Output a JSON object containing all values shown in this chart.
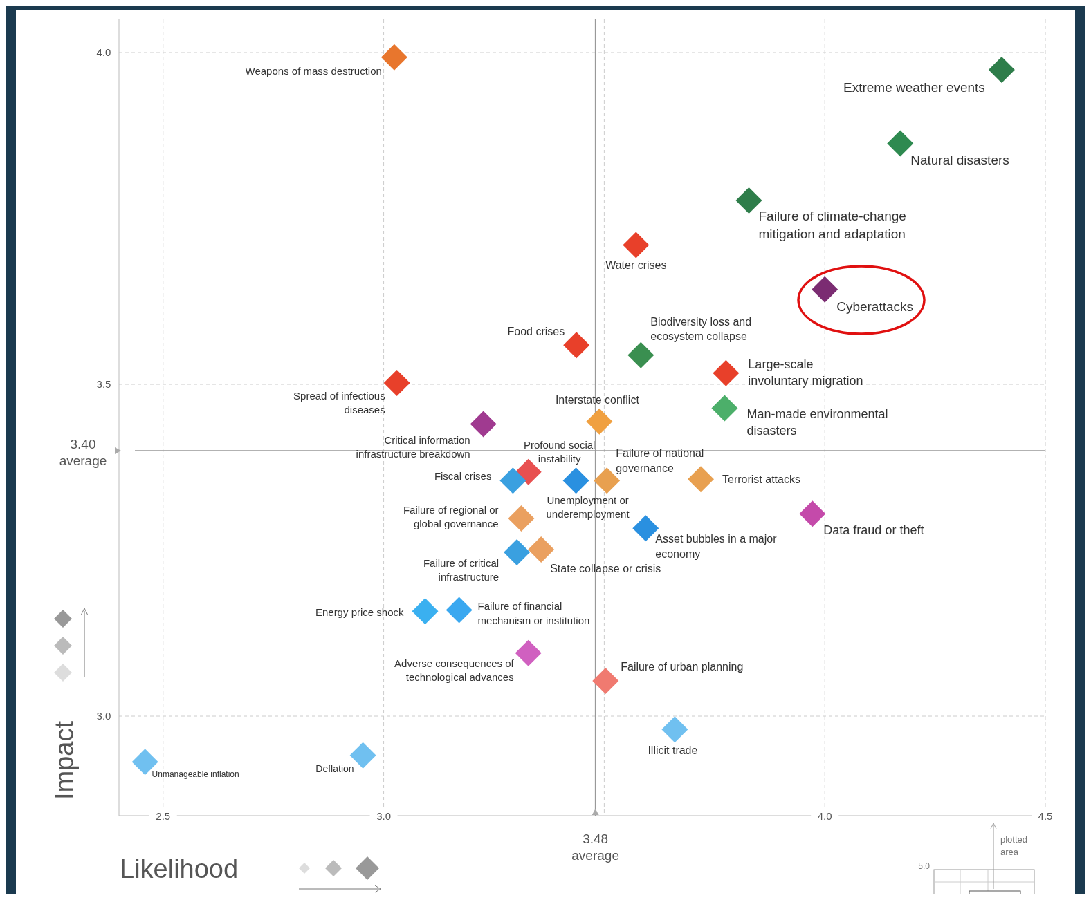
{
  "chart_data": {
    "type": "scatter",
    "xlabel": "Likelihood",
    "ylabel": "Impact",
    "xlim": [
      2.4,
      4.5
    ],
    "ylim": [
      2.85,
      4.05
    ],
    "xticks": [
      2.5,
      {
        "value": 3,
        "label": "3.0"
      },
      {
        "value": 3.5,
        "label": null
      },
      {
        "value": 4,
        "label": "4.0"
      },
      4.5
    ],
    "yticks": [
      {
        "value": 3,
        "label": "3.0"
      },
      3.5,
      {
        "value": 4,
        "label": "4.0"
      }
    ],
    "grid": true,
    "marker": "diamond",
    "ref_lines": [
      {
        "axis": "y",
        "value": 3.4,
        "label": "3.40\naverage",
        "color": "#999999"
      },
      {
        "axis": "x",
        "value": 3.48,
        "label": "3.48\naverage",
        "color": "#999999"
      }
    ],
    "annotations": [
      "plotted area",
      "5.0"
    ],
    "series": [
      {
        "x": [
          3.024,
          4.401,
          4.171,
          3.828,
          3.572,
          4.0,
          3.437,
          3.583,
          3.776,
          3.03,
          3.773,
          3.489,
          3.226,
          3.328,
          3.293,
          3.436,
          3.506,
          3.719,
          3.972,
          3.312,
          3.594,
          3.302,
          3.357,
          3.094,
          3.171,
          3.328,
          3.503,
          3.66,
          2.459,
          2.953
        ],
        "values": [
          3.993,
          3.974,
          3.863,
          3.777,
          3.71,
          3.643,
          3.559,
          3.544,
          3.517,
          3.502,
          3.464,
          3.444,
          3.44,
          3.368,
          3.355,
          3.355,
          3.355,
          3.357,
          3.305,
          3.298,
          3.283,
          3.247,
          3.251,
          3.158,
          3.16,
          3.095,
          3.053,
          2.98,
          2.931,
          2.941
        ],
        "colors": [
          "#e8762d",
          "#2e7d4a",
          "#2e8a50",
          "#2e7d4a",
          "#e8402a",
          "#7b2c72",
          "#e8402a",
          "#3a8f50",
          "#e8402a",
          "#e8402a",
          "#4caf6a",
          "#f0a040",
          "#a03a90",
          "#e85050",
          "#3aa0e0",
          "#2a90e0",
          "#e8a050",
          "#e8a050",
          "#c44aaa",
          "#eaa060",
          "#2a90e0",
          "#3aa0e0",
          "#eaa060",
          "#3ab0f0",
          "#3aa8f0",
          "#d060c0",
          "#f07a70",
          "#70c0f0",
          "#70c0f0",
          "#70c0f0"
        ],
        "value_labels": [
          "Weapons of mass destruction",
          "Extreme weather events",
          "Natural disasters",
          "Failure of climate-change\nmitigation and adaptation",
          "Water crises",
          "Cyberattacks",
          "Food crises",
          "Biodiversity loss and\necosystem collapse",
          "Large-scale\ninvoluntary migration",
          "Spread of infectious\ndiseases",
          "Man-made environmental\ndisasters",
          "Interstate conflict",
          "Critical information\ninfrastructure breakdown",
          "Profound social\ninstability",
          "Fiscal crises",
          "Unemployment or\nunderemployment",
          "Failure of national\ngovernance",
          "Terrorist attacks",
          "Data fraud or theft",
          "Failure of regional or\nglobal governance",
          "Asset bubbles in a major\neconomy",
          "Failure of critical\ninfrastructure",
          "State collapse or crisis",
          "Energy price shock",
          "Failure of financial\nmechanism or institution",
          "Adverse consequences of\ntechnological advances",
          "Failure of urban planning",
          "Illicit trade",
          "Unmanageable inflation",
          "Deflation"
        ]
      }
    ]
  }
}
